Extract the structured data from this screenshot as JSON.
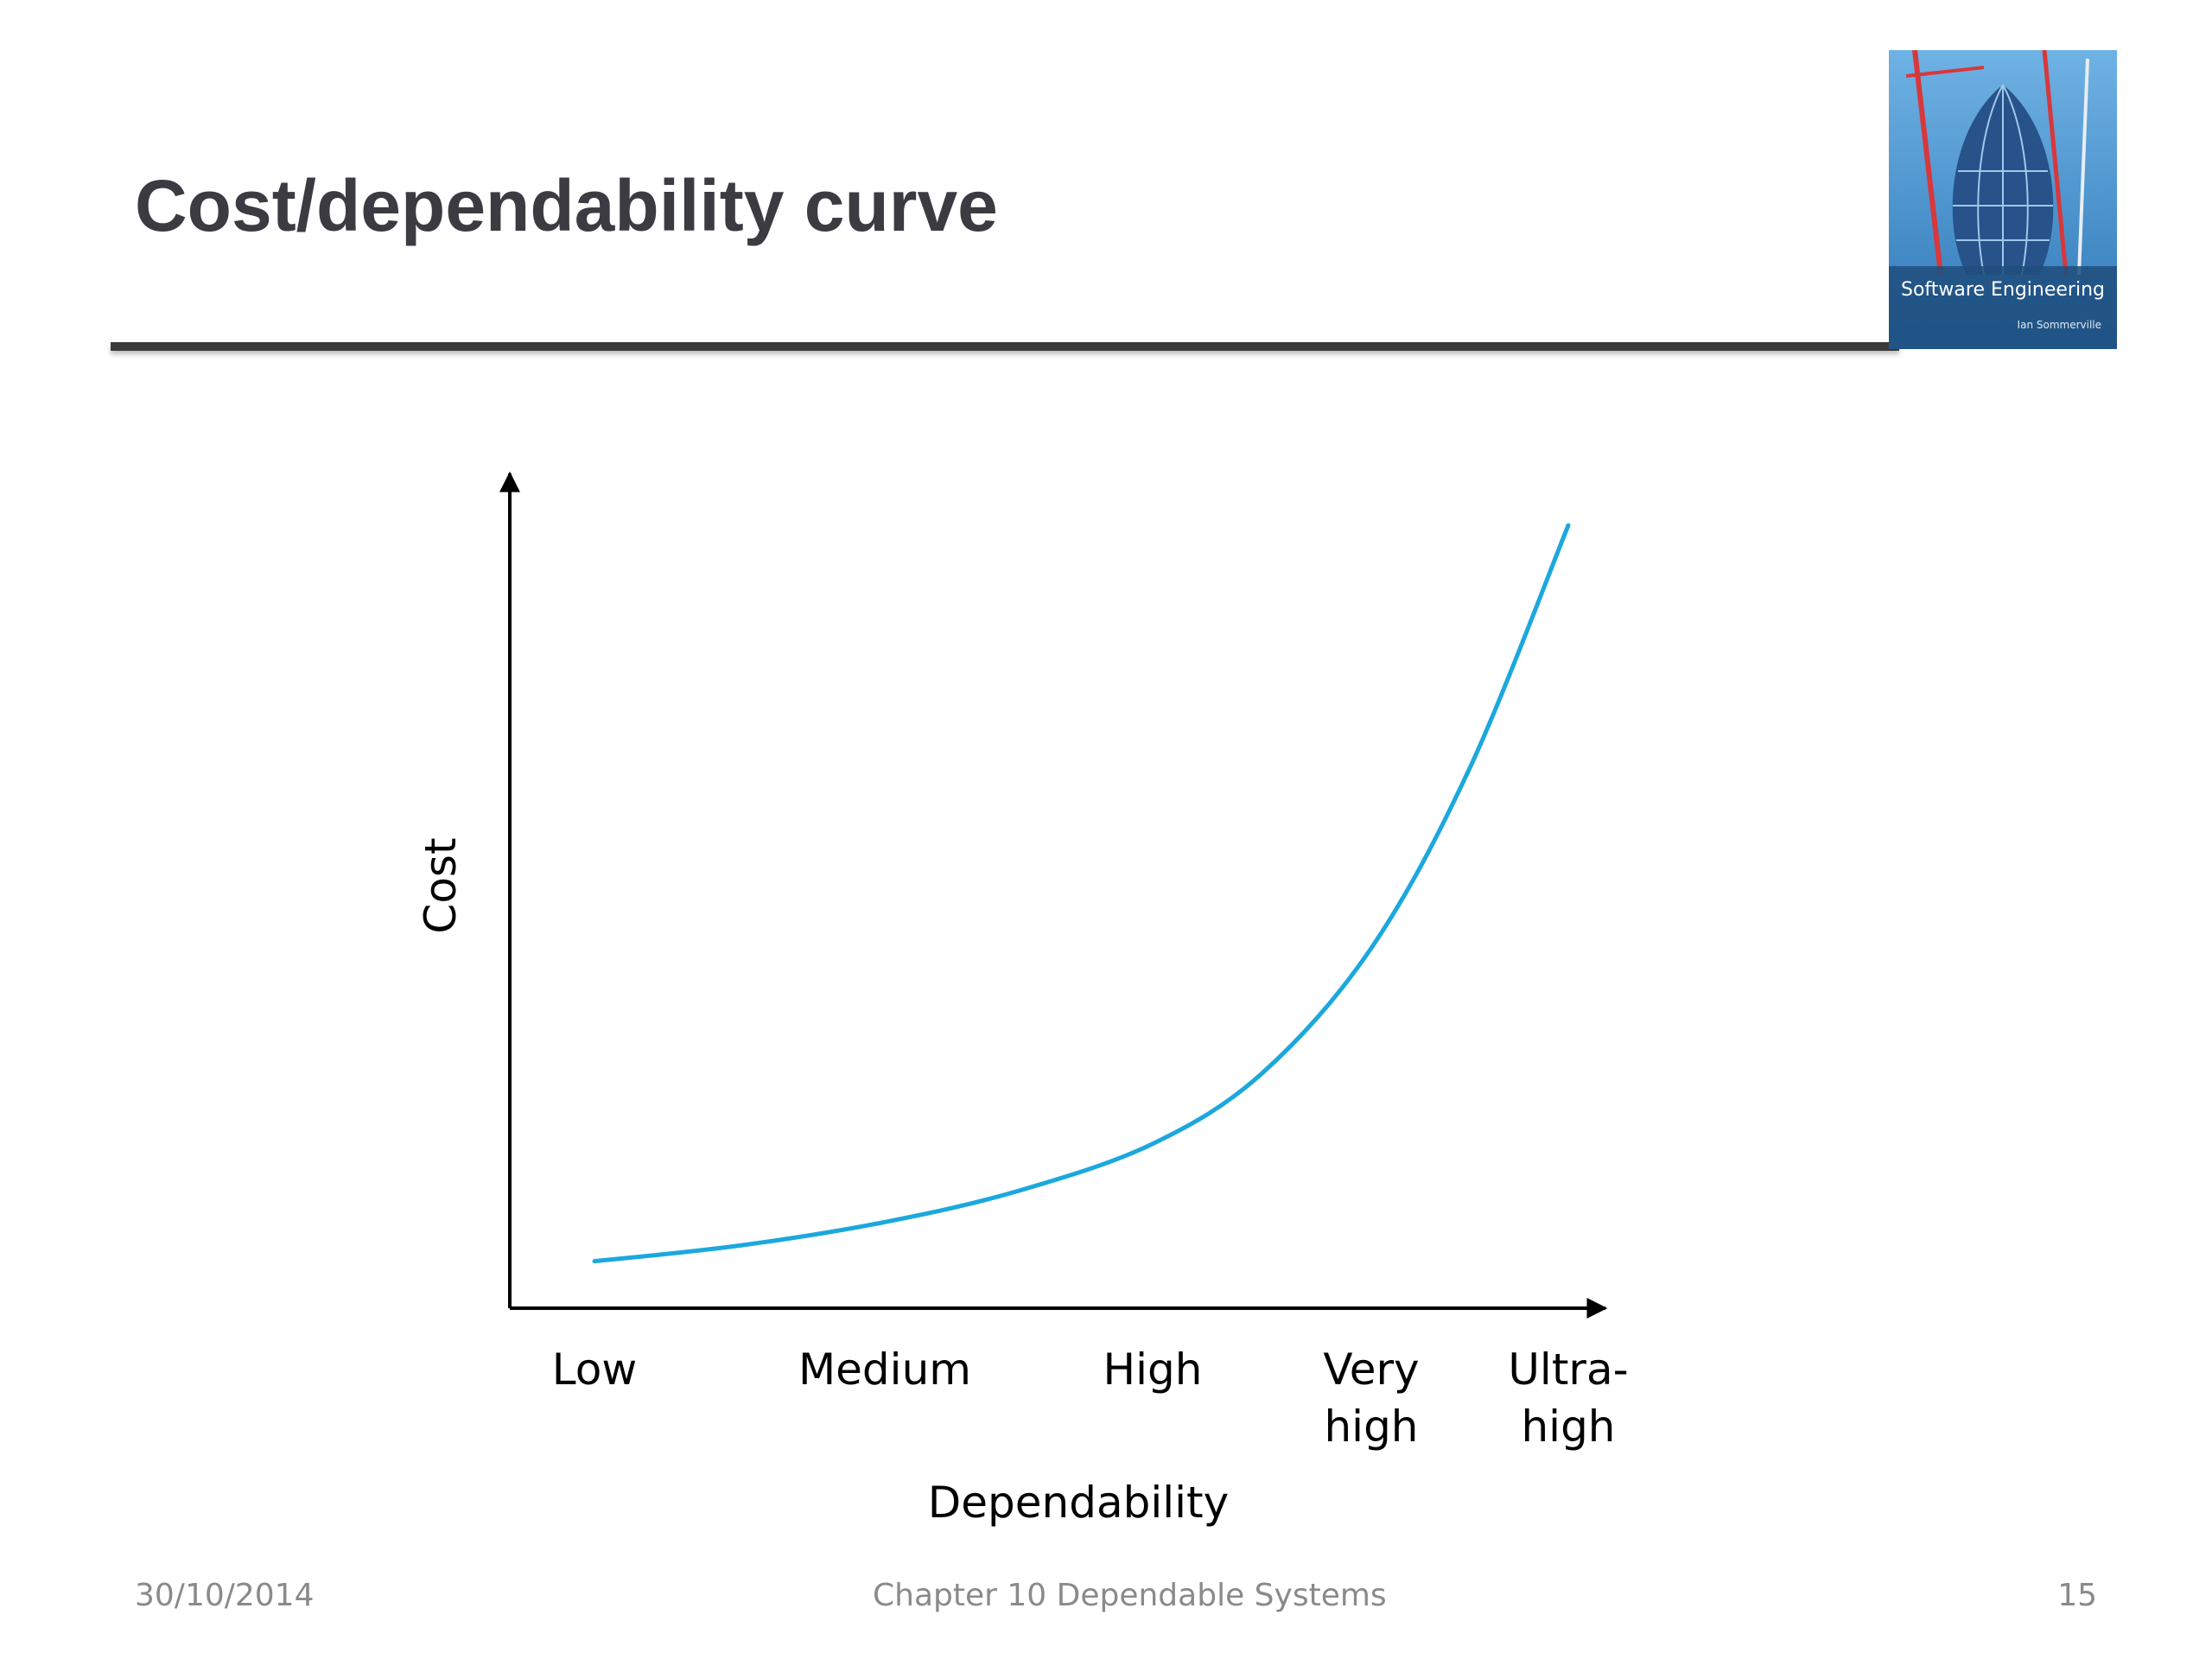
{
  "slide": {
    "title": "Cost/dependability curve"
  },
  "cover": {
    "title": "Software Engineering",
    "author": "Ian Sommerville",
    "colors": {
      "sky": "#3d86c4",
      "band": "#1f4d7c",
      "crane": "#d8373b"
    }
  },
  "chart_data": {
    "type": "line",
    "title": "",
    "xlabel": "Dependability",
    "ylabel": "Cost",
    "categories": [
      "Low",
      "Medium",
      "High",
      "Very high",
      "Ultra-high"
    ],
    "category_lines": [
      [
        "Low"
      ],
      [
        "Medium"
      ],
      [
        "High"
      ],
      [
        "Very",
        "high"
      ],
      [
        "Ultra-",
        "high"
      ]
    ],
    "x": [
      0,
      0.5,
      1,
      1.5,
      2,
      2.5,
      3,
      3.5,
      4
    ],
    "y": [
      6,
      8,
      11,
      15,
      21,
      30,
      46,
      69,
      100
    ],
    "ylim": [
      0,
      100
    ],
    "grid": false,
    "legend": "none",
    "ticks_y": false,
    "series": [
      {
        "values": [
          6,
          8,
          11,
          15,
          21,
          30,
          46,
          69,
          100
        ],
        "color": "#1ba8dd"
      }
    ]
  },
  "footer": {
    "date": "30/10/2014",
    "chapter": "Chapter 10 Dependable Systems",
    "page": "15"
  }
}
